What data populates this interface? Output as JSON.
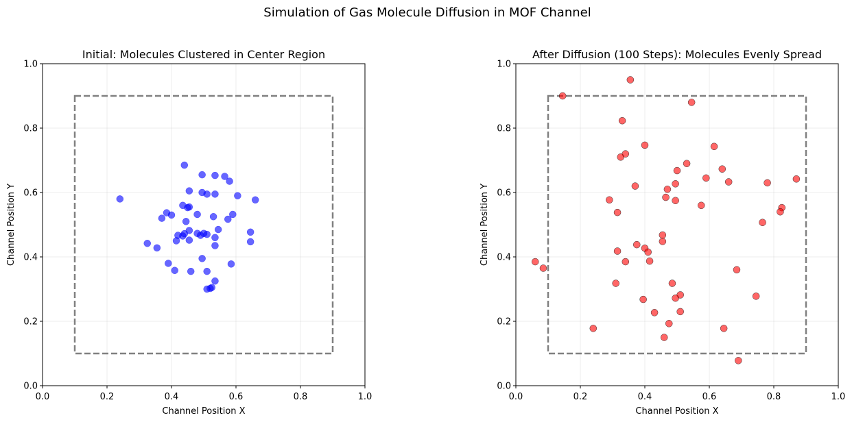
{
  "figure": {
    "suptitle": "Simulation of Gas Molecule Diffusion in MOF Channel"
  },
  "chart_data": [
    {
      "type": "scatter",
      "title": "Initial: Molecules Clustered in Center Region",
      "xlabel": "Channel Position X",
      "ylabel": "Channel Position Y",
      "xlim": [
        0,
        1
      ],
      "ylim": [
        0,
        1
      ],
      "xticks": [
        "0.0",
        "0.2",
        "0.4",
        "0.6",
        "0.8",
        "1.0"
      ],
      "yticks": [
        "0.0",
        "0.2",
        "0.4",
        "0.6",
        "0.8",
        "1.0"
      ],
      "grid": true,
      "color": "#0000ff",
      "boundary": {
        "x0": 0.1,
        "x1": 0.9,
        "y0": 0.1,
        "y1": 0.9,
        "color": "#808080",
        "style": "dashed"
      },
      "points": [
        [
          0.24,
          0.58
        ],
        [
          0.44,
          0.685
        ],
        [
          0.495,
          0.655
        ],
        [
          0.535,
          0.653
        ],
        [
          0.565,
          0.65
        ],
        [
          0.58,
          0.635
        ],
        [
          0.455,
          0.605
        ],
        [
          0.495,
          0.6
        ],
        [
          0.51,
          0.595
        ],
        [
          0.535,
          0.595
        ],
        [
          0.605,
          0.59
        ],
        [
          0.66,
          0.577
        ],
        [
          0.435,
          0.56
        ],
        [
          0.45,
          0.553
        ],
        [
          0.455,
          0.555
        ],
        [
          0.385,
          0.537
        ],
        [
          0.4,
          0.53
        ],
        [
          0.48,
          0.532
        ],
        [
          0.53,
          0.525
        ],
        [
          0.59,
          0.532
        ],
        [
          0.37,
          0.52
        ],
        [
          0.575,
          0.517
        ],
        [
          0.445,
          0.51
        ],
        [
          0.545,
          0.485
        ],
        [
          0.645,
          0.477
        ],
        [
          0.455,
          0.482
        ],
        [
          0.48,
          0.473
        ],
        [
          0.5,
          0.473
        ],
        [
          0.49,
          0.467
        ],
        [
          0.51,
          0.47
        ],
        [
          0.42,
          0.467
        ],
        [
          0.435,
          0.465
        ],
        [
          0.44,
          0.472
        ],
        [
          0.535,
          0.46
        ],
        [
          0.415,
          0.45
        ],
        [
          0.455,
          0.452
        ],
        [
          0.645,
          0.447
        ],
        [
          0.325,
          0.442
        ],
        [
          0.535,
          0.435
        ],
        [
          0.355,
          0.428
        ],
        [
          0.495,
          0.395
        ],
        [
          0.39,
          0.38
        ],
        [
          0.585,
          0.378
        ],
        [
          0.41,
          0.358
        ],
        [
          0.46,
          0.355
        ],
        [
          0.51,
          0.355
        ],
        [
          0.535,
          0.325
        ],
        [
          0.51,
          0.3
        ],
        [
          0.525,
          0.305
        ],
        [
          0.52,
          0.302
        ]
      ]
    },
    {
      "type": "scatter",
      "title": "After Diffusion (100 Steps): Molecules Evenly Spread",
      "xlabel": "Channel Position X",
      "ylabel": "Channel Position Y",
      "xlim": [
        0,
        1
      ],
      "ylim": [
        0,
        1
      ],
      "xticks": [
        "0.0",
        "0.2",
        "0.4",
        "0.6",
        "0.8",
        "1.0"
      ],
      "yticks": [
        "0.0",
        "0.2",
        "0.4",
        "0.6",
        "0.8",
        "1.0"
      ],
      "grid": true,
      "color": "#ff0000",
      "boundary": {
        "x0": 0.1,
        "x1": 0.9,
        "y0": 0.1,
        "y1": 0.9,
        "color": "#808080",
        "style": "dashed"
      },
      "points": [
        [
          0.355,
          0.95
        ],
        [
          0.145,
          0.9
        ],
        [
          0.545,
          0.88
        ],
        [
          0.33,
          0.823
        ],
        [
          0.4,
          0.747
        ],
        [
          0.615,
          0.743
        ],
        [
          0.34,
          0.72
        ],
        [
          0.325,
          0.71
        ],
        [
          0.53,
          0.69
        ],
        [
          0.64,
          0.673
        ],
        [
          0.5,
          0.668
        ],
        [
          0.59,
          0.645
        ],
        [
          0.87,
          0.642
        ],
        [
          0.66,
          0.633
        ],
        [
          0.78,
          0.63
        ],
        [
          0.495,
          0.627
        ],
        [
          0.37,
          0.62
        ],
        [
          0.47,
          0.61
        ],
        [
          0.29,
          0.577
        ],
        [
          0.465,
          0.585
        ],
        [
          0.495,
          0.575
        ],
        [
          0.575,
          0.56
        ],
        [
          0.825,
          0.553
        ],
        [
          0.82,
          0.54
        ],
        [
          0.315,
          0.538
        ],
        [
          0.765,
          0.507
        ],
        [
          0.455,
          0.468
        ],
        [
          0.455,
          0.448
        ],
        [
          0.375,
          0.438
        ],
        [
          0.4,
          0.427
        ],
        [
          0.41,
          0.415
        ],
        [
          0.315,
          0.418
        ],
        [
          0.06,
          0.385
        ],
        [
          0.34,
          0.385
        ],
        [
          0.415,
          0.387
        ],
        [
          0.085,
          0.365
        ],
        [
          0.685,
          0.36
        ],
        [
          0.31,
          0.318
        ],
        [
          0.485,
          0.318
        ],
        [
          0.51,
          0.282
        ],
        [
          0.495,
          0.272
        ],
        [
          0.745,
          0.278
        ],
        [
          0.395,
          0.268
        ],
        [
          0.43,
          0.227
        ],
        [
          0.51,
          0.23
        ],
        [
          0.475,
          0.193
        ],
        [
          0.24,
          0.178
        ],
        [
          0.645,
          0.178
        ],
        [
          0.46,
          0.15
        ],
        [
          0.69,
          0.078
        ]
      ]
    }
  ]
}
